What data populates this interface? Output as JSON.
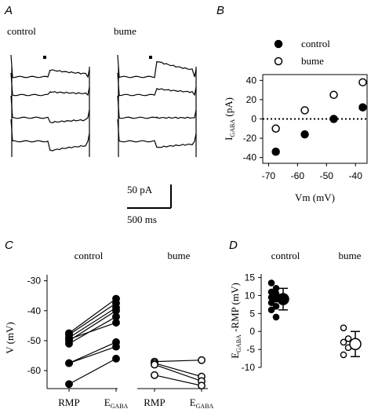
{
  "panels": {
    "A": {
      "letter": "A",
      "label_control": "control",
      "label_drug": "bume",
      "scale_current": "50 pA",
      "scale_time": "500 ms"
    },
    "B": {
      "letter": "B"
    },
    "C": {
      "letter": "C"
    },
    "D": {
      "letter": "D"
    }
  },
  "colors": {
    "ink": "#000000",
    "paper": "#ffffff"
  },
  "chart_data": [
    {
      "panel": "A",
      "type": "line",
      "description_source": "current traces, shown without axes",
      "series": [
        {
          "group": "control",
          "level": [
            22,
            27,
            30,
            30
          ],
          "step": [
            0,
            0,
            0,
            0
          ]
        },
        {
          "group": "bume",
          "level": [
            22,
            27,
            30,
            30
          ],
          "step": [
            0,
            0,
            0,
            0
          ]
        }
      ]
    },
    {
      "panel": "B",
      "type": "scatter",
      "xlabel": "Vm (mV)",
      "ylabel_main": "I",
      "ylabel_sub": "GABA",
      "ylabel_unit": "(pA)",
      "xlim": [
        -72,
        -36
      ],
      "ylim": [
        -46,
        46
      ],
      "xticks": [
        -70,
        -60,
        -50,
        -40
      ],
      "yticks": [
        40,
        20,
        0,
        -20,
        -40
      ],
      "legend": [
        "control",
        "bume"
      ],
      "series": [
        {
          "name": "control",
          "fill": "filled",
          "x": [
            -67.5,
            -57.5,
            -47.5,
            -37.5
          ],
          "y": [
            -34,
            -16,
            0,
            12
          ]
        },
        {
          "name": "bume",
          "fill": "open",
          "x": [
            -67.5,
            -57.5,
            -47.5,
            -37.5
          ],
          "y": [
            -10,
            9,
            25,
            38
          ]
        }
      ],
      "zero_line": "dotted"
    },
    {
      "panel": "C",
      "type": "line",
      "ylabel": "V (mV)",
      "ylim": [
        -66,
        -28
      ],
      "yticks": [
        -30,
        -40,
        -50,
        -60
      ],
      "groups": [
        {
          "name": "control",
          "fill": "filled",
          "categories": [
            {
              "main": "RMP",
              "sub": ""
            },
            {
              "main": "E",
              "sub": "GABA"
            }
          ],
          "pairs": [
            [
              -47.5,
              -36
            ],
            [
              -48,
              -37.5
            ],
            [
              -49,
              -39
            ],
            [
              -50,
              -40
            ],
            [
              -51,
              -42
            ],
            [
              -49.5,
              -44
            ],
            [
              -57.5,
              -50.5
            ],
            [
              -57.5,
              -52
            ],
            [
              -64.5,
              -56
            ]
          ]
        },
        {
          "name": "bume",
          "fill": "open",
          "categories": [
            {
              "main": "RMP",
              "sub": ""
            },
            {
              "main": "E",
              "sub": "GABA"
            }
          ],
          "pairs": [
            [
              -57,
              -56.5
            ],
            [
              -57.5,
              -62
            ],
            [
              -58,
              -63.5
            ],
            [
              -61.5,
              -65
            ]
          ]
        }
      ]
    },
    {
      "panel": "D",
      "type": "scatter",
      "ylabel_main": "E",
      "ylabel_sub": "GABA",
      "ylabel_rest": "-RMP (mV)",
      "ylim": [
        -10,
        16
      ],
      "yticks": [
        15,
        10,
        5,
        0,
        -5,
        -10
      ],
      "groups": [
        {
          "name": "control",
          "fill": "filled",
          "values": [
            13.5,
            12,
            11,
            10.5,
            9.5,
            9,
            8,
            7,
            6,
            4
          ],
          "mean": 9,
          "error": 3
        },
        {
          "name": "bume",
          "fill": "open",
          "values": [
            1,
            -2,
            -3,
            -4.5,
            -6.5
          ],
          "mean": -3.5,
          "error": 3.5
        }
      ]
    }
  ]
}
